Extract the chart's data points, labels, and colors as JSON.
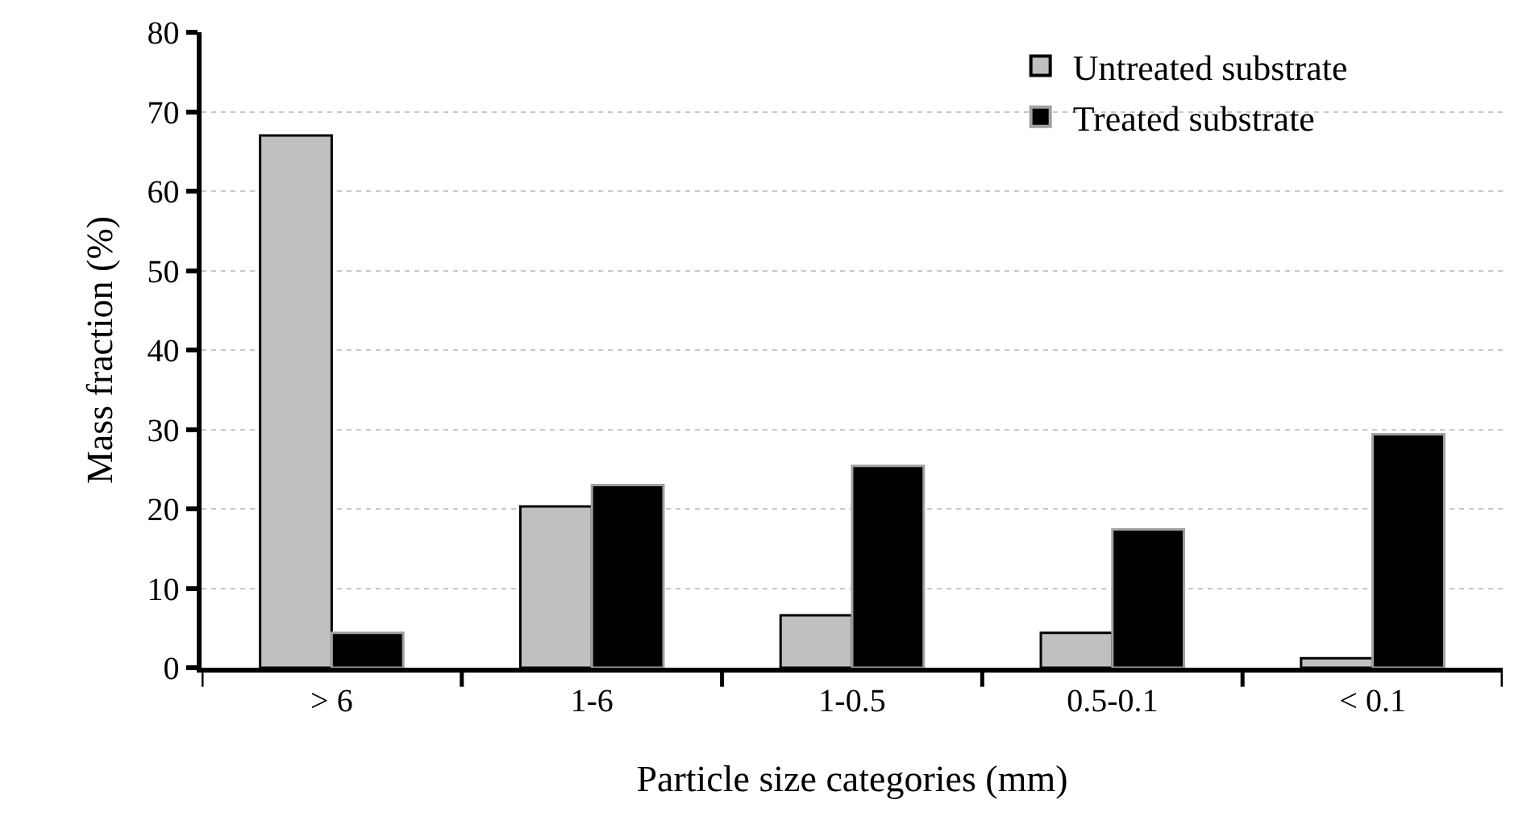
{
  "chart_data": {
    "type": "bar",
    "xlabel": "Particle size categories (mm)",
    "ylabel": "Mass fraction (%)",
    "categories": [
      "> 6",
      "1-6",
      "1-0.5",
      "0.5-0.1",
      "< 0.1"
    ],
    "series": [
      {
        "name": "Untreated substrate",
        "color": "#c0c0c0",
        "values": [
          67.0,
          20.3,
          6.6,
          4.4,
          1.2
        ]
      },
      {
        "name": "Treated substrate",
        "color": "#000000",
        "values": [
          4.4,
          23.0,
          25.4,
          17.4,
          29.4
        ]
      }
    ],
    "ylim": [
      0,
      80
    ],
    "yticks": [
      0,
      10,
      20,
      30,
      40,
      50,
      60,
      70,
      80
    ],
    "grid": "y",
    "legend": "top right"
  }
}
